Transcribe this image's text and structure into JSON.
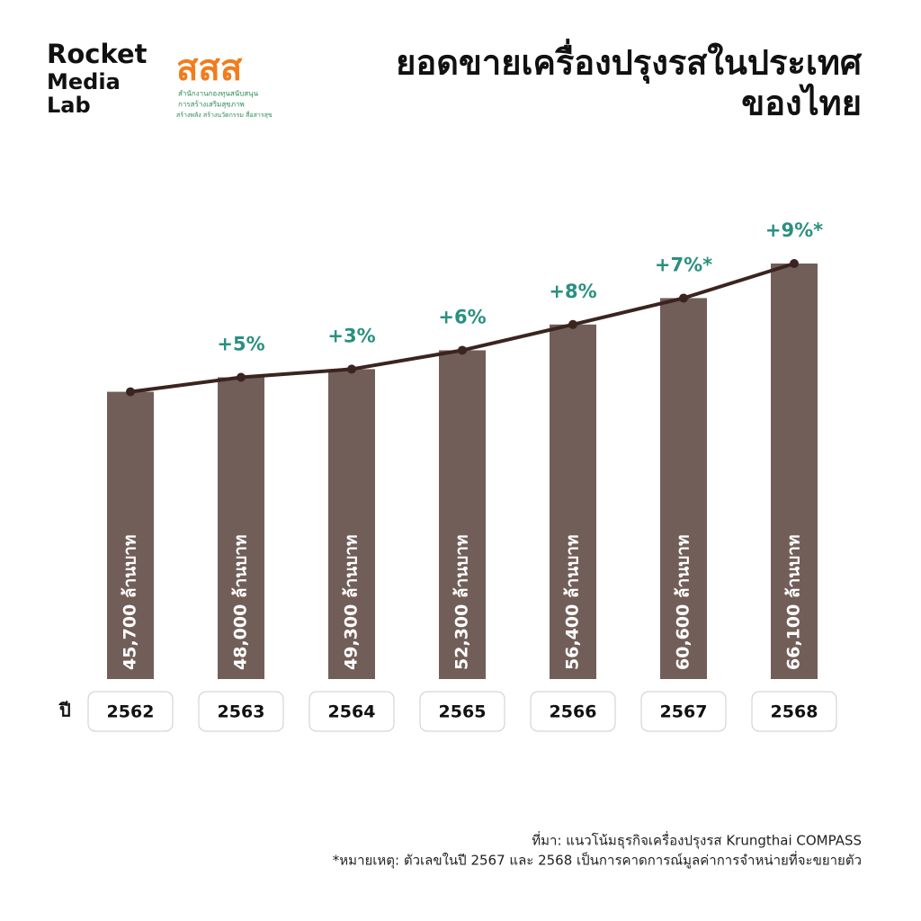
{
  "logo": {
    "lines": [
      "Rocket",
      "Media",
      "Lab"
    ]
  },
  "partner_logo": {
    "mark": "สสส",
    "lines": [
      "สำนักงานกองทุนสนับสนุน",
      "การสร้างเสริมสุขภาพ",
      "สร้างพลัง สร้างนวัตกรรม สื่อสารสุข"
    ]
  },
  "chart_data": {
    "type": "bar",
    "title_lines": [
      "ยอดขายเครื่องปรุงรสในประเทศ",
      "ของไทย"
    ],
    "x_label": "ปี",
    "categories": [
      "2562",
      "2563",
      "2564",
      "2565",
      "2566",
      "2567",
      "2568"
    ],
    "values": [
      45700,
      48000,
      49300,
      52300,
      56400,
      60600,
      66100
    ],
    "value_labels": [
      "45,700 ล้านบาท",
      "48,000 ล้านบาท",
      "49,300 ล้านบาท",
      "52,300 ล้านบาท",
      "56,400 ล้านบาท",
      "60,600 ล้านบาท",
      "66,100 ล้านบาท"
    ],
    "growth_labels": [
      null,
      "+5%",
      "+3%",
      "+6%",
      "+8%",
      "+7%*",
      "+9%*"
    ],
    "color": "#725e58",
    "line_color": "#3b2420",
    "growth_color": "#2a9080",
    "source": "ที่มา: แนวโน้มธุรกิจเครื่องปรุงรส Krungthai COMPASS",
    "note": "*หมายเหตุ: ตัวเลขในปี 2567 และ 2568 เป็นการคาดการณ์มูลค่าการจำหน่ายที่จะขยายตัว"
  }
}
